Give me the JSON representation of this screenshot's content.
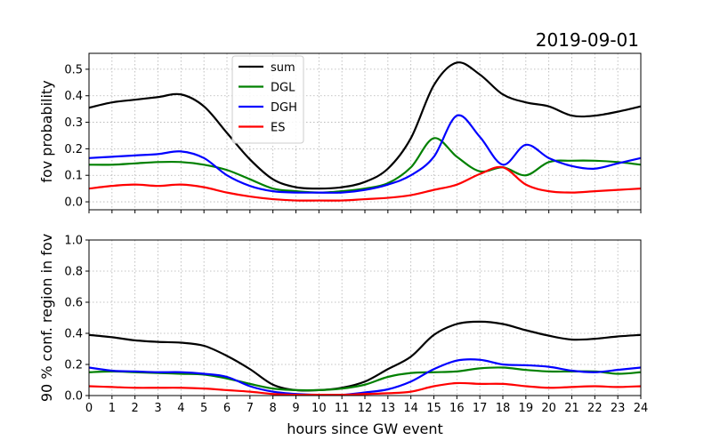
{
  "figure_title": "2019-09-01",
  "xlabel": "hours since GW event",
  "chart_data": [
    {
      "type": "line",
      "ylabel": "fov probability",
      "xlim": [
        0,
        24
      ],
      "ylim": [
        -0.03,
        0.56
      ],
      "yticks": [
        "0.0",
        "0.1",
        "0.2",
        "0.3",
        "0.4",
        "0.5"
      ],
      "ytick_values": [
        0,
        0.1,
        0.2,
        0.3,
        0.4,
        0.5
      ],
      "show_xtick_labels": false,
      "grid": true,
      "legend_placement": "top-center",
      "x": [
        0,
        1,
        2,
        3,
        4,
        5,
        6,
        7,
        8,
        9,
        10,
        11,
        12,
        13,
        14,
        15,
        16,
        17,
        18,
        19,
        20,
        21,
        22,
        23,
        24
      ],
      "series": [
        {
          "name": "sum",
          "color": "#000000",
          "values": [
            0.355,
            0.375,
            0.385,
            0.395,
            0.405,
            0.36,
            0.26,
            0.16,
            0.085,
            0.055,
            0.05,
            0.055,
            0.075,
            0.125,
            0.24,
            0.44,
            0.525,
            0.48,
            0.405,
            0.375,
            0.36,
            0.325,
            0.325,
            0.34,
            0.36
          ]
        },
        {
          "name": "DGL",
          "color": "#008000",
          "values": [
            0.14,
            0.14,
            0.145,
            0.15,
            0.15,
            0.14,
            0.12,
            0.085,
            0.05,
            0.04,
            0.035,
            0.04,
            0.05,
            0.07,
            0.13,
            0.24,
            0.17,
            0.115,
            0.13,
            0.1,
            0.15,
            0.155,
            0.155,
            0.15,
            0.14
          ]
        },
        {
          "name": "DGH",
          "color": "#0000ff",
          "values": [
            0.165,
            0.17,
            0.175,
            0.18,
            0.19,
            0.165,
            0.1,
            0.06,
            0.04,
            0.035,
            0.035,
            0.035,
            0.045,
            0.065,
            0.1,
            0.17,
            0.325,
            0.245,
            0.14,
            0.215,
            0.165,
            0.135,
            0.125,
            0.145,
            0.165
          ]
        },
        {
          "name": "ES",
          "color": "#ff0000",
          "values": [
            0.05,
            0.06,
            0.065,
            0.06,
            0.065,
            0.055,
            0.035,
            0.02,
            0.01,
            0.005,
            0.005,
            0.005,
            0.01,
            0.015,
            0.025,
            0.045,
            0.065,
            0.105,
            0.13,
            0.065,
            0.04,
            0.035,
            0.04,
            0.045,
            0.05
          ]
        }
      ]
    },
    {
      "type": "line",
      "ylabel": "90 % conf. region in fov",
      "xlim": [
        0,
        24
      ],
      "ylim": [
        0,
        1
      ],
      "yticks": [
        "0.0",
        "0.2",
        "0.4",
        "0.6",
        "0.8",
        "1.0"
      ],
      "ytick_values": [
        0,
        0.2,
        0.4,
        0.6,
        0.8,
        1.0
      ],
      "xticks": [
        "0",
        "1",
        "2",
        "3",
        "4",
        "5",
        "6",
        "7",
        "8",
        "9",
        "10",
        "11",
        "12",
        "13",
        "14",
        "15",
        "16",
        "17",
        "18",
        "19",
        "20",
        "21",
        "22",
        "23",
        "24"
      ],
      "show_xtick_labels": true,
      "grid": true,
      "x": [
        0,
        1,
        2,
        3,
        4,
        5,
        6,
        7,
        8,
        9,
        10,
        11,
        12,
        13,
        14,
        15,
        16,
        17,
        18,
        19,
        20,
        21,
        22,
        23,
        24
      ],
      "series": [
        {
          "name": "sum",
          "color": "#000000",
          "values": [
            0.39,
            0.375,
            0.355,
            0.345,
            0.34,
            0.32,
            0.255,
            0.17,
            0.07,
            0.035,
            0.035,
            0.05,
            0.09,
            0.17,
            0.25,
            0.39,
            0.46,
            0.475,
            0.46,
            0.42,
            0.385,
            0.36,
            0.365,
            0.38,
            0.39
          ]
        },
        {
          "name": "DGL",
          "color": "#008000",
          "values": [
            0.15,
            0.155,
            0.15,
            0.145,
            0.14,
            0.135,
            0.11,
            0.075,
            0.045,
            0.035,
            0.035,
            0.045,
            0.07,
            0.12,
            0.145,
            0.15,
            0.155,
            0.175,
            0.18,
            0.165,
            0.155,
            0.155,
            0.155,
            0.14,
            0.15
          ]
        },
        {
          "name": "DGH",
          "color": "#0000ff",
          "values": [
            0.18,
            0.16,
            0.155,
            0.15,
            0.15,
            0.14,
            0.12,
            0.06,
            0.025,
            0.01,
            0.005,
            0.005,
            0.02,
            0.04,
            0.09,
            0.17,
            0.225,
            0.23,
            0.2,
            0.195,
            0.185,
            0.16,
            0.15,
            0.165,
            0.18
          ]
        },
        {
          "name": "ES",
          "color": "#ff0000",
          "values": [
            0.06,
            0.055,
            0.05,
            0.05,
            0.05,
            0.045,
            0.035,
            0.025,
            0.01,
            0.005,
            0.005,
            0.005,
            0.01,
            0.015,
            0.025,
            0.06,
            0.08,
            0.075,
            0.075,
            0.06,
            0.05,
            0.055,
            0.06,
            0.055,
            0.06
          ]
        }
      ]
    }
  ]
}
